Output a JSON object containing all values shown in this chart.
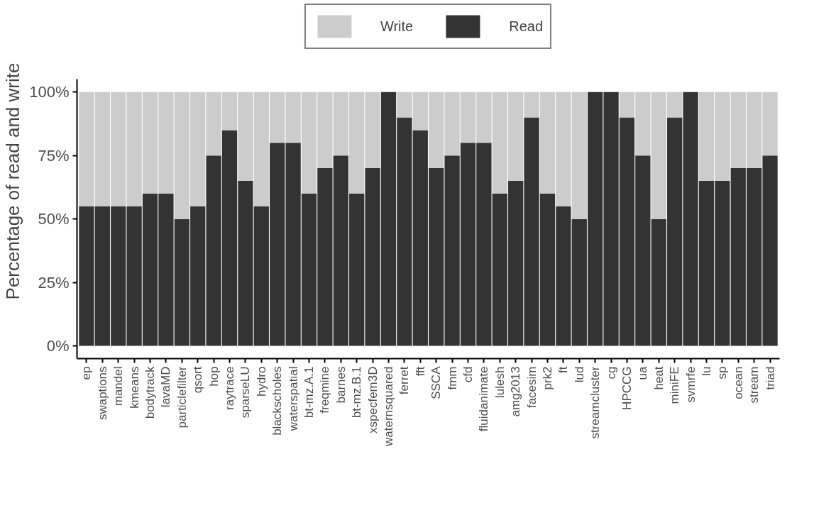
{
  "chart_data": {
    "type": "bar",
    "stacked": true,
    "ylabel": "Percentage of read and write",
    "categories": [
      "ep",
      "swaptions",
      "mandel",
      "kmeans",
      "bodytrack",
      "lavaMD",
      "particlefilter",
      "qsort",
      "hop",
      "raytrace",
      "sparseLU",
      "hydro",
      "blackscholes",
      "waterspatial",
      "bt-mz.A.1",
      "freqmine",
      "barnes",
      "bt-mz.B.1",
      "xspecfem3D",
      "waternsquared",
      "ferret",
      "fft",
      "SSCA",
      "fmm",
      "cfd",
      "fluidanimate",
      "lulesh",
      "amg2013",
      "facesim",
      "prk2",
      "ft",
      "lud",
      "streamcluster",
      "cg",
      "HPCCG",
      "ua",
      "heat",
      "miniFE",
      "svmrfe",
      "lu",
      "sp",
      "ocean",
      "stream",
      "triad"
    ],
    "series": [
      {
        "name": "Read",
        "color": "#333333",
        "values": [
          55,
          55,
          55,
          55,
          60,
          60,
          50,
          55,
          75,
          85,
          65,
          55,
          80,
          80,
          60,
          70,
          75,
          60,
          70,
          100,
          90,
          85,
          70,
          75,
          80,
          80,
          60,
          65,
          90,
          60,
          55,
          50,
          100,
          100,
          90,
          75,
          50,
          90,
          100,
          65,
          65,
          70,
          70,
          75
        ]
      },
      {
        "name": "Write",
        "color": "#cccccc",
        "values": [
          45,
          45,
          45,
          45,
          40,
          40,
          50,
          45,
          25,
          15,
          35,
          45,
          20,
          20,
          40,
          30,
          25,
          40,
          30,
          0,
          10,
          15,
          30,
          25,
          20,
          20,
          40,
          35,
          10,
          40,
          45,
          50,
          0,
          0,
          10,
          25,
          50,
          10,
          0,
          35,
          35,
          30,
          30,
          25
        ]
      }
    ],
    "ylim": [
      -5,
      105
    ],
    "yticks": [
      {
        "value": 0,
        "label": "0%"
      },
      {
        "value": 25,
        "label": "25%"
      },
      {
        "value": 50,
        "label": "50%"
      },
      {
        "value": 75,
        "label": "75%"
      },
      {
        "value": 100,
        "label": "100%"
      }
    ],
    "grid": false,
    "legend": "top"
  }
}
